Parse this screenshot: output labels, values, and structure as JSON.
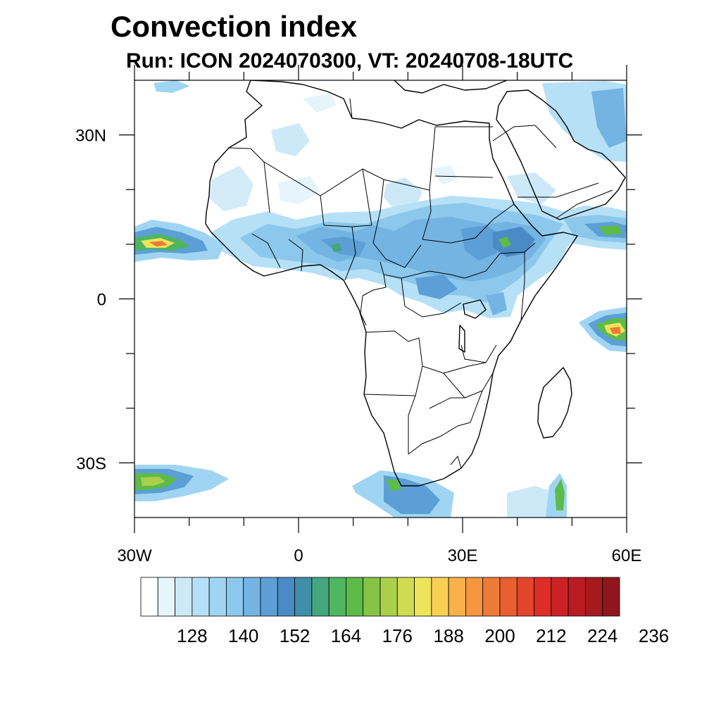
{
  "title": "Convection index",
  "subtitle": "Run: ICON 2024070300,  VT: 20240708-18UTC",
  "map": {
    "lon_range": [
      -30,
      60
    ],
    "lat_range": [
      -40,
      40
    ],
    "x_ticks": [
      {
        "lon": -30,
        "label": "30W"
      },
      {
        "lon": 0,
        "label": "0"
      },
      {
        "lon": 30,
        "label": "30E"
      },
      {
        "lon": 60,
        "label": "60E"
      }
    ],
    "y_ticks": [
      {
        "lat": 30,
        "label": "30N"
      },
      {
        "lat": 0,
        "label": "0"
      },
      {
        "lat": -30,
        "label": "30S"
      }
    ],
    "minor_lon": [
      -20,
      -10,
      10,
      20,
      40,
      50
    ],
    "minor_lat": [
      20,
      10,
      -10,
      -20
    ]
  },
  "colorbar": {
    "colors": [
      "#ffffff",
      "#e6f4fc",
      "#cde9f8",
      "#b6e0f6",
      "#9fd5f2",
      "#8bc8ec",
      "#74b4e2",
      "#5c9fd6",
      "#4a8bc6",
      "#3f8fa8",
      "#45a57e",
      "#4eb560",
      "#5dbb4a",
      "#86c448",
      "#aacf4c",
      "#cfdb50",
      "#eee45a",
      "#f9cf54",
      "#f8b24a",
      "#f59640",
      "#ef7a38",
      "#e95f30",
      "#e3452c",
      "#dc2d28",
      "#cc2226",
      "#b91c22",
      "#a61a1e",
      "#8f161a"
    ],
    "labels": [
      "128",
      "140",
      "152",
      "164",
      "176",
      "188",
      "200",
      "212",
      "224",
      "236"
    ]
  }
}
